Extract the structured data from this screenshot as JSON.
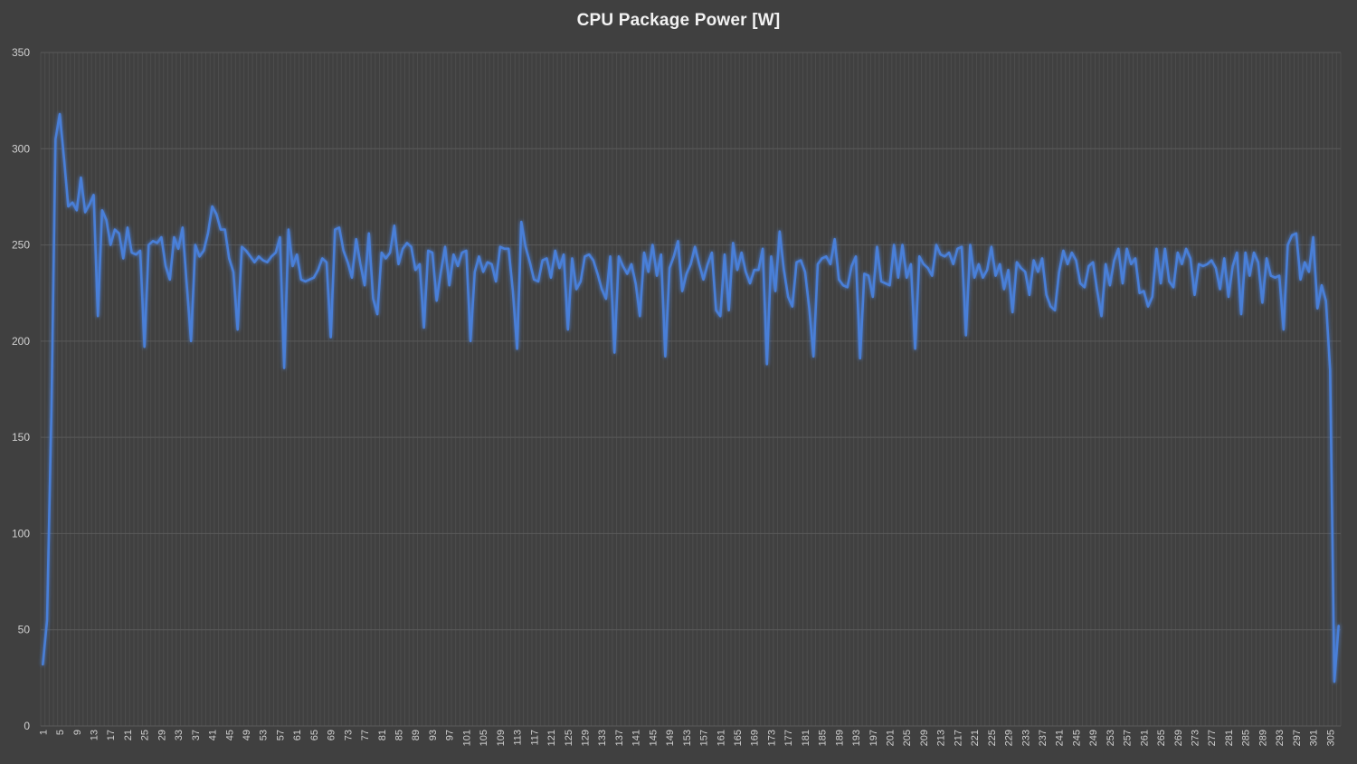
{
  "chart_data": {
    "type": "line",
    "title": "CPU Package Power [W]",
    "xlabel": "",
    "ylabel": "",
    "ylim": [
      0,
      350
    ],
    "yticks": [
      0,
      50,
      100,
      150,
      200,
      250,
      300,
      350
    ],
    "x_start": 1,
    "x_label_step": 4,
    "grid": true,
    "line_color": "#4a7fd8",
    "background_color": "#404040",
    "grid_color": "#5a5a5a",
    "series": [
      {
        "values": [
          32,
          55,
          160,
          305,
          318,
          295,
          270,
          272,
          268,
          285,
          267,
          271,
          276,
          213,
          268,
          263,
          250,
          258,
          256,
          243,
          259,
          246,
          245,
          247,
          197,
          250,
          252,
          251,
          254,
          239,
          232,
          254,
          248,
          259,
          229,
          200,
          250,
          244,
          247,
          256,
          270,
          266,
          258,
          258,
          243,
          236,
          206,
          249,
          247,
          244,
          241,
          244,
          242,
          241,
          244,
          246,
          254,
          186,
          258,
          239,
          245,
          232,
          231,
          232,
          233,
          237,
          243,
          241,
          202,
          258,
          259,
          247,
          241,
          233,
          253,
          240,
          229,
          256,
          222,
          214,
          246,
          243,
          246,
          260,
          240,
          248,
          251,
          249,
          237,
          240,
          207,
          247,
          246,
          221,
          236,
          249,
          229,
          245,
          239,
          246,
          247,
          200,
          236,
          244,
          236,
          241,
          240,
          231,
          249,
          248,
          248,
          226,
          196,
          262,
          249,
          241,
          232,
          231,
          242,
          243,
          233,
          247,
          238,
          245,
          206,
          243,
          227,
          231,
          244,
          245,
          242,
          235,
          227,
          222,
          244,
          194,
          244,
          239,
          235,
          240,
          230,
          213,
          246,
          236,
          250,
          234,
          245,
          192,
          238,
          244,
          252,
          226,
          235,
          240,
          249,
          240,
          232,
          240,
          246,
          216,
          213,
          245,
          216,
          251,
          237,
          246,
          236,
          230,
          237,
          237,
          248,
          188,
          244,
          226,
          257,
          237,
          223,
          218,
          241,
          242,
          236,
          217,
          192,
          240,
          243,
          244,
          240,
          253,
          232,
          229,
          228,
          239,
          244,
          191,
          235,
          234,
          223,
          249,
          231,
          230,
          229,
          250,
          233,
          250,
          233,
          240,
          196,
          244,
          240,
          238,
          234,
          250,
          245,
          244,
          246,
          240,
          248,
          249,
          203,
          250,
          233,
          240,
          233,
          237,
          249,
          234,
          240,
          227,
          237,
          215,
          241,
          238,
          236,
          224,
          242,
          236,
          243,
          224,
          218,
          216,
          236,
          247,
          240,
          246,
          242,
          230,
          228,
          239,
          241,
          226,
          213,
          240,
          229,
          242,
          248,
          230,
          248,
          240,
          243,
          225,
          226,
          218,
          223,
          248,
          230,
          248,
          231,
          228,
          246,
          240,
          248,
          243,
          224,
          240,
          239,
          240,
          242,
          238,
          227,
          243,
          223,
          239,
          246,
          214,
          246,
          234,
          246,
          241,
          220,
          243,
          234,
          233,
          234,
          206,
          250,
          255,
          256,
          232,
          241,
          236,
          254,
          217,
          229,
          221,
          185,
          23,
          52
        ]
      }
    ]
  }
}
